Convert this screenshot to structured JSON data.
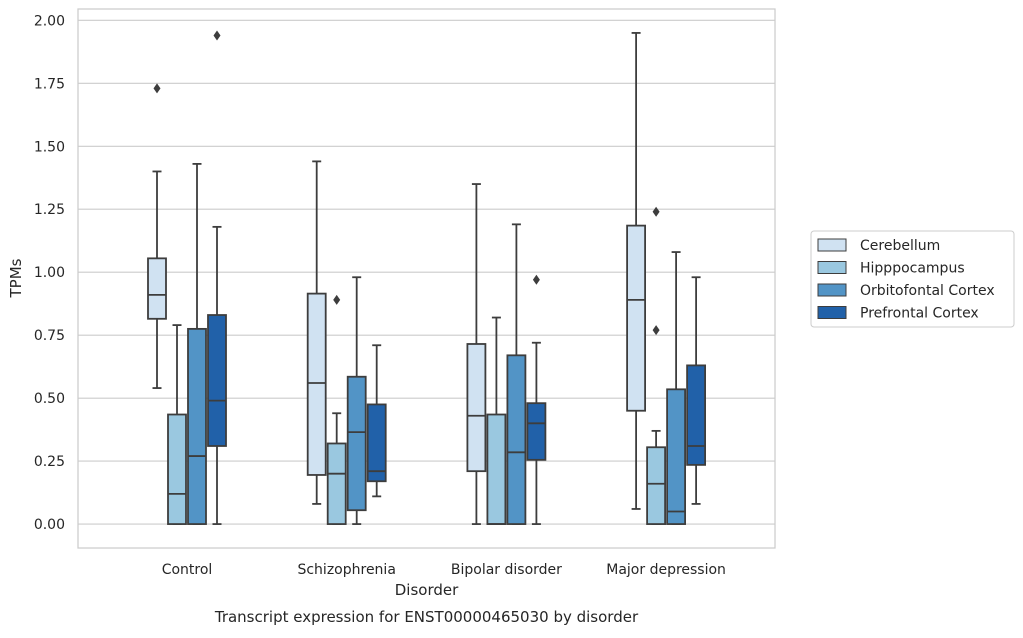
{
  "chart_data": {
    "type": "boxplot",
    "caption": "Transcript expression for ENST00000465030 by disorder",
    "xlabel": "Disorder",
    "ylabel": "TPMs",
    "ylim": [
      -0.095,
      2.045
    ],
    "yticks": [
      0.0,
      0.25,
      0.5,
      0.75,
      1.0,
      1.25,
      1.5,
      1.75,
      2.0
    ],
    "ytick_labels": [
      "0.00",
      "0.25",
      "0.50",
      "0.75",
      "1.00",
      "1.25",
      "1.50",
      "1.75",
      "2.00"
    ],
    "categories": [
      "Control",
      "Schizophrenia",
      "Bipolar disorder",
      "Major depression"
    ],
    "grid": true,
    "legend_position": "center-right-outside",
    "series": [
      {
        "name": "Cerebellum",
        "color": "#d0e2f2",
        "boxes": [
          {
            "whisker_low": 0.54,
            "q1": 0.815,
            "median": 0.91,
            "q3": 1.055,
            "whisker_high": 1.4,
            "outliers": [
              1.73
            ]
          },
          {
            "whisker_low": 0.08,
            "q1": 0.195,
            "median": 0.56,
            "q3": 0.915,
            "whisker_high": 1.44,
            "outliers": []
          },
          {
            "whisker_low": 0.0,
            "q1": 0.21,
            "median": 0.43,
            "q3": 0.715,
            "whisker_high": 1.35,
            "outliers": []
          },
          {
            "whisker_low": 0.06,
            "q1": 0.45,
            "median": 0.89,
            "q3": 1.185,
            "whisker_high": 1.95,
            "outliers": []
          }
        ]
      },
      {
        "name": "Hipppocampus",
        "color": "#9ac8e0",
        "boxes": [
          {
            "whisker_low": 0.0,
            "q1": 0.0,
            "median": 0.12,
            "q3": 0.435,
            "whisker_high": 0.79,
            "outliers": []
          },
          {
            "whisker_low": 0.0,
            "q1": 0.0,
            "median": 0.2,
            "q3": 0.32,
            "whisker_high": 0.44,
            "outliers": [
              0.89
            ]
          },
          {
            "whisker_low": 0.0,
            "q1": 0.0,
            "median": 0.0,
            "q3": 0.435,
            "whisker_high": 0.82,
            "outliers": []
          },
          {
            "whisker_low": 0.0,
            "q1": 0.0,
            "median": 0.16,
            "q3": 0.305,
            "whisker_high": 0.37,
            "outliers": [
              0.77,
              1.24
            ]
          }
        ]
      },
      {
        "name": "Orbitofontal Cortex",
        "color": "#5294c6",
        "boxes": [
          {
            "whisker_low": 0.0,
            "q1": 0.0,
            "median": 0.27,
            "q3": 0.775,
            "whisker_high": 1.43,
            "outliers": []
          },
          {
            "whisker_low": 0.0,
            "q1": 0.055,
            "median": 0.365,
            "q3": 0.585,
            "whisker_high": 0.98,
            "outliers": []
          },
          {
            "whisker_low": 0.0,
            "q1": 0.0,
            "median": 0.285,
            "q3": 0.67,
            "whisker_high": 1.19,
            "outliers": []
          },
          {
            "whisker_low": 0.0,
            "q1": 0.0,
            "median": 0.05,
            "q3": 0.535,
            "whisker_high": 1.08,
            "outliers": []
          }
        ]
      },
      {
        "name": "Prefrontal Cortex",
        "color": "#2161a9",
        "boxes": [
          {
            "whisker_low": 0.0,
            "q1": 0.31,
            "median": 0.49,
            "q3": 0.83,
            "whisker_high": 1.18,
            "outliers": [
              1.94
            ]
          },
          {
            "whisker_low": 0.11,
            "q1": 0.17,
            "median": 0.21,
            "q3": 0.475,
            "whisker_high": 0.71,
            "outliers": []
          },
          {
            "whisker_low": 0.0,
            "q1": 0.255,
            "median": 0.4,
            "q3": 0.48,
            "whisker_high": 0.72,
            "outliers": [
              0.97
            ]
          },
          {
            "whisker_low": 0.08,
            "q1": 0.235,
            "median": 0.31,
            "q3": 0.63,
            "whisker_high": 0.98,
            "outliers": []
          }
        ]
      }
    ]
  }
}
